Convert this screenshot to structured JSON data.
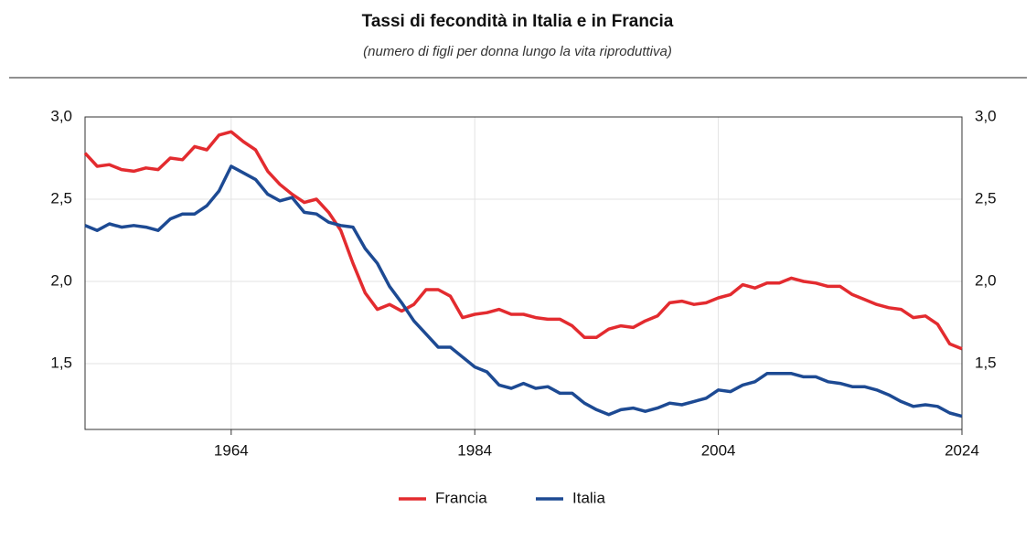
{
  "chart_data": {
    "type": "line",
    "title": "Tassi di fecondità in Italia e in Francia",
    "subtitle": "(numero di figli per donna lungo la vita riproduttiva)",
    "x": [
      1952,
      1953,
      1954,
      1955,
      1956,
      1957,
      1958,
      1959,
      1960,
      1961,
      1962,
      1963,
      1964,
      1965,
      1966,
      1967,
      1968,
      1969,
      1970,
      1971,
      1972,
      1973,
      1974,
      1975,
      1976,
      1977,
      1978,
      1979,
      1980,
      1981,
      1982,
      1983,
      1984,
      1985,
      1986,
      1987,
      1988,
      1989,
      1990,
      1991,
      1992,
      1993,
      1994,
      1995,
      1996,
      1997,
      1998,
      1999,
      2000,
      2001,
      2002,
      2003,
      2004,
      2005,
      2006,
      2007,
      2008,
      2009,
      2010,
      2011,
      2012,
      2013,
      2014,
      2015,
      2016,
      2017,
      2018,
      2019,
      2020,
      2021,
      2022,
      2023,
      2024
    ],
    "series": [
      {
        "name": "Francia",
        "color": "#e32b2f",
        "values": [
          2.78,
          2.7,
          2.71,
          2.68,
          2.67,
          2.69,
          2.68,
          2.75,
          2.74,
          2.82,
          2.8,
          2.89,
          2.91,
          2.85,
          2.8,
          2.67,
          2.59,
          2.53,
          2.48,
          2.5,
          2.42,
          2.31,
          2.11,
          1.93,
          1.83,
          1.86,
          1.82,
          1.86,
          1.95,
          1.95,
          1.91,
          1.78,
          1.8,
          1.81,
          1.83,
          1.8,
          1.8,
          1.78,
          1.77,
          1.77,
          1.73,
          1.66,
          1.66,
          1.71,
          1.73,
          1.72,
          1.76,
          1.79,
          1.87,
          1.88,
          1.86,
          1.87,
          1.9,
          1.92,
          1.98,
          1.96,
          1.99,
          1.99,
          2.02,
          2.0,
          1.99,
          1.97,
          1.97,
          1.92,
          1.89,
          1.86,
          1.84,
          1.83,
          1.78,
          1.79,
          1.74,
          1.62,
          1.59
        ]
      },
      {
        "name": "Italia",
        "color": "#1d4a93",
        "values": [
          2.34,
          2.31,
          2.35,
          2.33,
          2.34,
          2.33,
          2.31,
          2.38,
          2.41,
          2.41,
          2.46,
          2.55,
          2.7,
          2.66,
          2.62,
          2.53,
          2.49,
          2.51,
          2.42,
          2.41,
          2.36,
          2.34,
          2.33,
          2.2,
          2.11,
          1.97,
          1.87,
          1.76,
          1.68,
          1.6,
          1.6,
          1.54,
          1.48,
          1.45,
          1.37,
          1.35,
          1.38,
          1.35,
          1.36,
          1.32,
          1.32,
          1.26,
          1.22,
          1.19,
          1.22,
          1.23,
          1.21,
          1.23,
          1.26,
          1.25,
          1.27,
          1.29,
          1.34,
          1.33,
          1.37,
          1.39,
          1.44,
          1.44,
          1.44,
          1.42,
          1.42,
          1.39,
          1.38,
          1.36,
          1.36,
          1.34,
          1.31,
          1.27,
          1.24,
          1.25,
          1.24,
          1.2,
          1.18
        ]
      }
    ],
    "xlim": [
      1952,
      2024
    ],
    "xticks": [
      1964,
      1984,
      2004,
      2024
    ],
    "ylim": [
      1.1,
      3.0
    ],
    "yticks": [
      {
        "value": 1.5,
        "label": "1,5"
      },
      {
        "value": 2.0,
        "label": "2,0"
      },
      {
        "value": 2.5,
        "label": "2,5"
      },
      {
        "value": 3.0,
        "label": "3,0"
      }
    ],
    "grid": true,
    "legend": "bottom"
  }
}
